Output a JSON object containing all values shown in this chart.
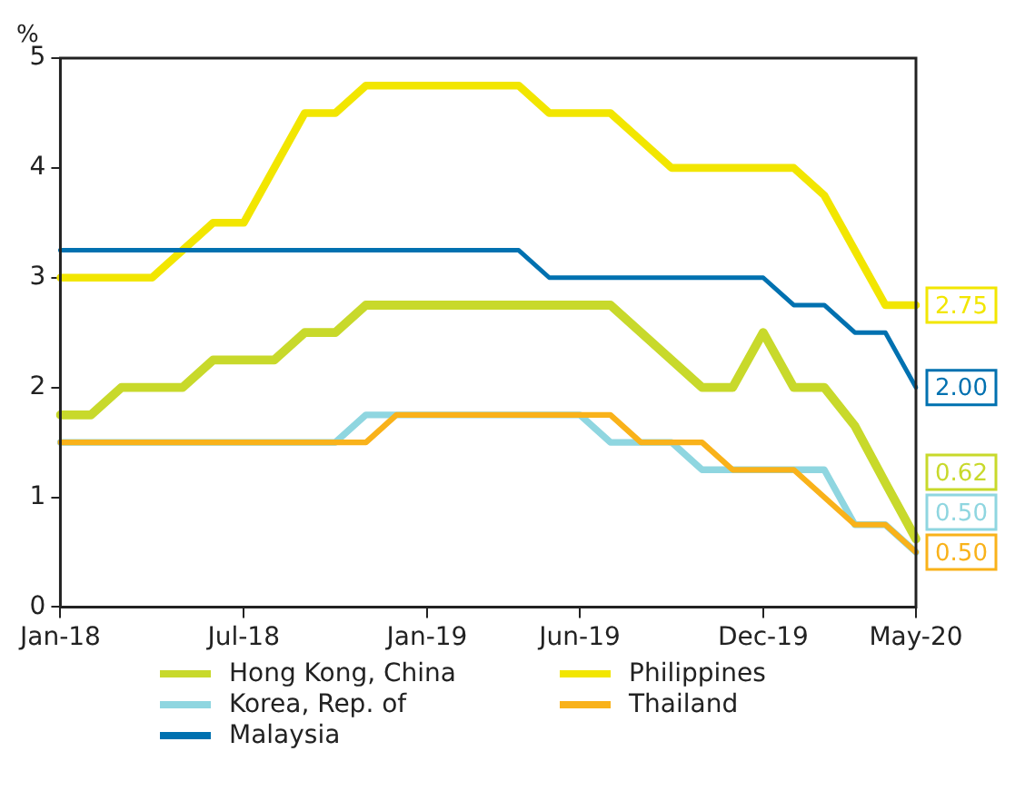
{
  "chart_data": {
    "type": "line",
    "ylabel": "%",
    "categories": [
      "Jan-18",
      null,
      null,
      null,
      null,
      null,
      "Jul-18",
      null,
      null,
      null,
      null,
      null,
      "Jan-19",
      null,
      null,
      null,
      null,
      "Jun-19",
      null,
      null,
      null,
      null,
      null,
      "Dec-19",
      null,
      null,
      null,
      null,
      "May-20"
    ],
    "series": [
      {
        "name": "Hong Kong, China",
        "color": "#c8d92b",
        "values": [
          1.75,
          1.75,
          2.0,
          2.0,
          2.0,
          2.25,
          2.25,
          2.25,
          2.5,
          2.5,
          2.75,
          2.75,
          2.75,
          2.75,
          2.75,
          2.75,
          2.75,
          2.75,
          2.75,
          2.5,
          2.25,
          2.0,
          2.0,
          2.5,
          2.0,
          2.0,
          1.65,
          1.13,
          0.62
        ],
        "value_labels": [
          null,
          null,
          null,
          null,
          null,
          null,
          null,
          null,
          null,
          null,
          null,
          null,
          null,
          null,
          null,
          null,
          null,
          null,
          null,
          null,
          null,
          null,
          null,
          null,
          null,
          null,
          null,
          null,
          "0.62"
        ]
      },
      {
        "name": "Philippines",
        "color": "#f2e600",
        "values": [
          3.0,
          3.0,
          3.0,
          3.0,
          3.25,
          3.5,
          3.5,
          4.0,
          4.5,
          4.5,
          4.75,
          4.75,
          4.75,
          4.75,
          4.75,
          4.75,
          4.5,
          4.5,
          4.5,
          4.25,
          4.0,
          4.0,
          4.0,
          4.0,
          4.0,
          3.75,
          3.25,
          2.75,
          2.75
        ],
        "value_labels": [
          null,
          null,
          null,
          null,
          null,
          null,
          null,
          null,
          null,
          null,
          null,
          null,
          null,
          null,
          null,
          null,
          null,
          null,
          null,
          null,
          null,
          null,
          null,
          null,
          null,
          null,
          null,
          null,
          "2.75"
        ]
      },
      {
        "name": "Korea, Rep. of",
        "color": "#8fd6e0",
        "values": [
          1.5,
          1.5,
          1.5,
          1.5,
          1.5,
          1.5,
          1.5,
          1.5,
          1.5,
          1.5,
          1.75,
          1.75,
          1.75,
          1.75,
          1.75,
          1.75,
          1.75,
          1.75,
          1.5,
          1.5,
          1.5,
          1.25,
          1.25,
          1.25,
          1.25,
          1.25,
          0.75,
          0.75,
          0.5
        ],
        "value_labels": [
          null,
          null,
          null,
          null,
          null,
          null,
          null,
          null,
          null,
          null,
          null,
          null,
          null,
          null,
          null,
          null,
          null,
          null,
          null,
          null,
          null,
          null,
          null,
          null,
          null,
          null,
          null,
          null,
          "0.50"
        ]
      },
      {
        "name": "Thailand",
        "color": "#f9b21a",
        "values": [
          1.5,
          1.5,
          1.5,
          1.5,
          1.5,
          1.5,
          1.5,
          1.5,
          1.5,
          1.5,
          1.5,
          1.75,
          1.75,
          1.75,
          1.75,
          1.75,
          1.75,
          1.75,
          1.75,
          1.5,
          1.5,
          1.5,
          1.25,
          1.25,
          1.25,
          1.0,
          0.75,
          0.75,
          0.5
        ],
        "value_labels": [
          null,
          null,
          null,
          null,
          null,
          null,
          null,
          null,
          null,
          null,
          null,
          null,
          null,
          null,
          null,
          null,
          null,
          null,
          null,
          null,
          null,
          null,
          null,
          null,
          null,
          null,
          null,
          null,
          "0.50"
        ]
      },
      {
        "name": "Malaysia",
        "color": "#0071b0",
        "values": [
          3.25,
          3.25,
          3.25,
          3.25,
          3.25,
          3.25,
          3.25,
          3.25,
          3.25,
          3.25,
          3.25,
          3.25,
          3.25,
          3.25,
          3.25,
          3.25,
          3.0,
          3.0,
          3.0,
          3.0,
          3.0,
          3.0,
          3.0,
          3.0,
          2.75,
          2.75,
          2.5,
          2.5,
          2.0
        ],
        "value_labels": [
          null,
          null,
          null,
          null,
          null,
          null,
          null,
          null,
          null,
          null,
          null,
          null,
          null,
          null,
          null,
          null,
          null,
          null,
          null,
          null,
          null,
          null,
          null,
          null,
          null,
          null,
          null,
          null,
          "2.00"
        ]
      }
    ],
    "ylim": [
      0,
      5
    ],
    "yticks": [
      0,
      1,
      2,
      3,
      4,
      5
    ],
    "grid": false,
    "legend": "bottom",
    "marker": "none",
    "line_style": "solid"
  }
}
